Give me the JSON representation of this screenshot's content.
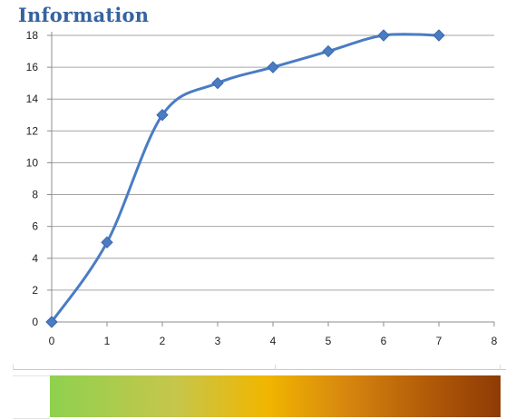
{
  "header": {
    "title": "Information"
  },
  "chart_data": {
    "type": "line",
    "title": "Information",
    "xlabel": "",
    "ylabel": "",
    "xlim": [
      0,
      8
    ],
    "ylim": [
      0,
      18
    ],
    "x_ticks": [
      "0",
      "1",
      "2",
      "3",
      "4",
      "5",
      "6",
      "7",
      "8"
    ],
    "y_ticks": [
      "0",
      "2",
      "4",
      "6",
      "8",
      "10",
      "12",
      "14",
      "16",
      "18"
    ],
    "grid": true,
    "smoothed": true,
    "marker": "diamond",
    "series": [
      {
        "color": "#4a7cc4",
        "x": [
          0,
          1,
          2,
          3,
          4,
          5,
          6,
          7
        ],
        "y": [
          0,
          5,
          13,
          15,
          16,
          17,
          18,
          18
        ]
      }
    ]
  },
  "colors": {
    "title": "#35639e",
    "line": "#4a7cc4",
    "grid": "#a6a6a6",
    "gradient_start": "#8fd14f",
    "gradient_mid": "#f1b600",
    "gradient_end": "#8e3b05"
  }
}
